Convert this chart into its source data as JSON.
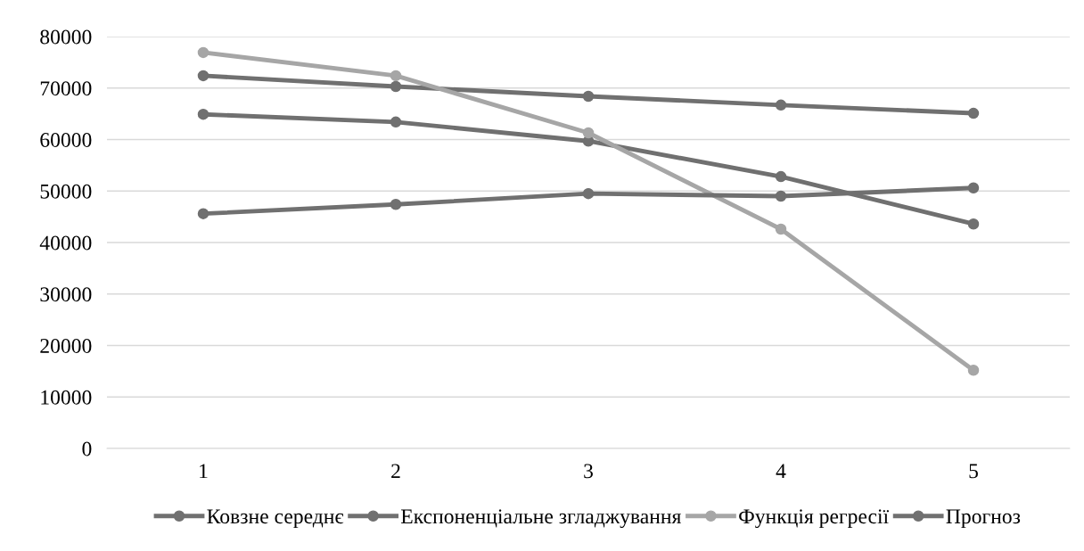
{
  "chart_data": {
    "type": "line",
    "categories": [
      "1",
      "2",
      "3",
      "4",
      "5"
    ],
    "series": [
      {
        "name": "Ковзне середнє",
        "color": "#707070",
        "values": [
          64900,
          63400,
          59700,
          52800,
          43600
        ]
      },
      {
        "name": "Експоненціальне згладжування",
        "color": "#707070",
        "values": [
          72400,
          70300,
          68400,
          66700,
          65100
        ]
      },
      {
        "name": "Функція регресії",
        "color": "#a6a6a6",
        "values": [
          76900,
          72400,
          61300,
          42600,
          15200
        ]
      },
      {
        "name": "Прогноз",
        "color": "#707070",
        "values": [
          45600,
          47400,
          49500,
          49000,
          50600
        ]
      }
    ],
    "ylim": [
      0,
      80000
    ],
    "yticks": [
      0,
      10000,
      20000,
      30000,
      40000,
      50000,
      60000,
      70000,
      80000
    ],
    "grid": "y",
    "legend": "bottom",
    "marker": "circle",
    "line_style": "solid"
  }
}
